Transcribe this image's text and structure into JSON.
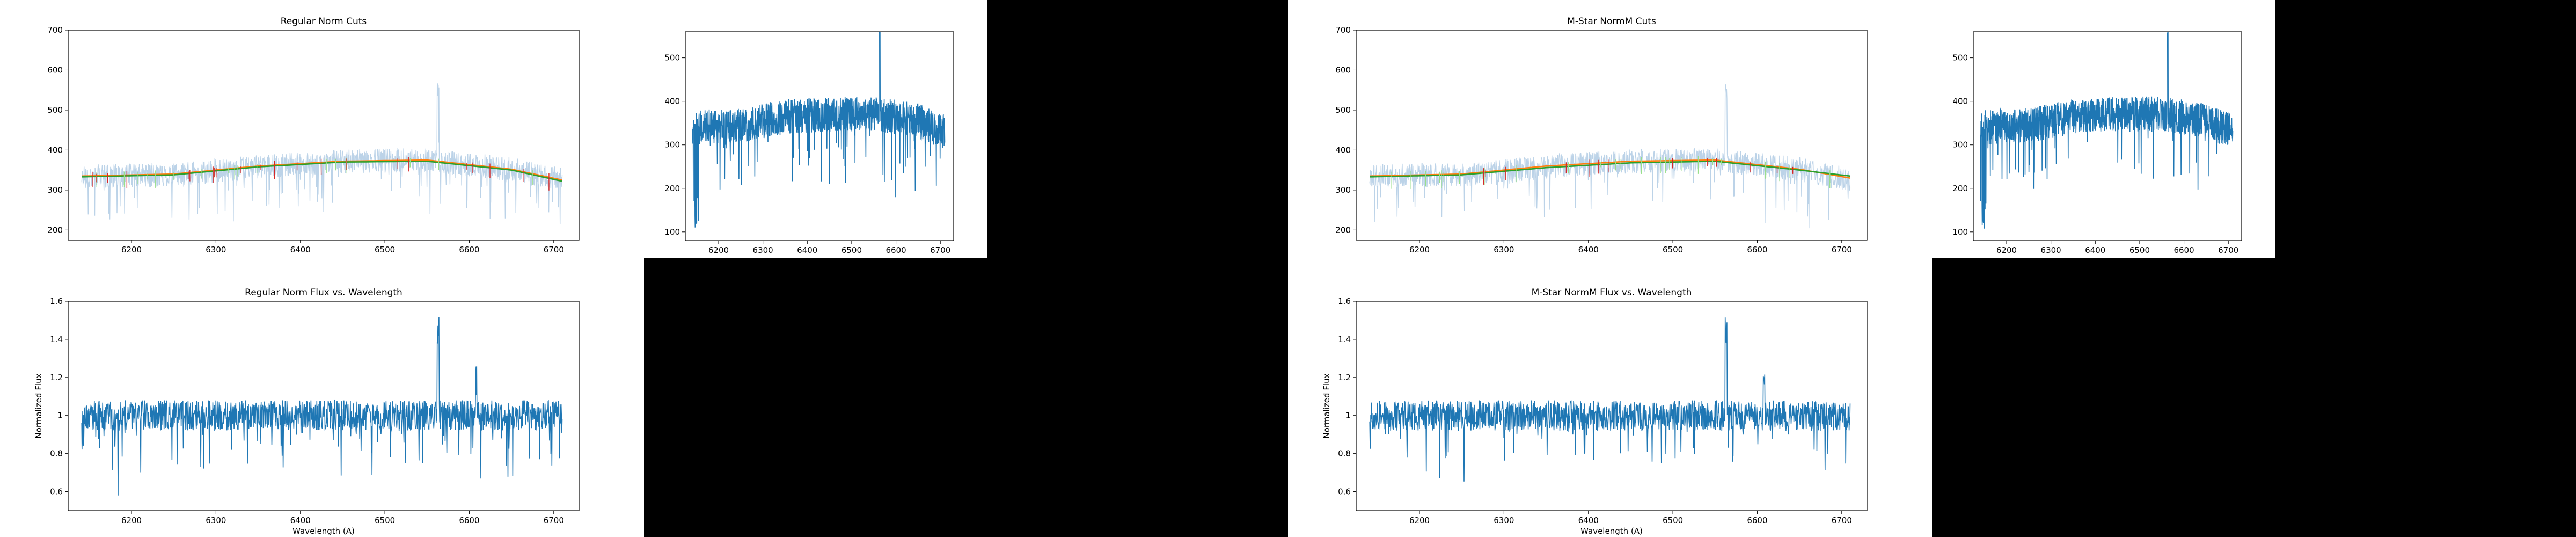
{
  "colors": {
    "flux": "#1f77b4",
    "flux_faint": "#bcd3e8",
    "fit_orange": "#ff7f0e",
    "fit_green": "#2ca02c",
    "cut_red": "#d62728",
    "cut_green": "#98df8a",
    "axis": "#000000",
    "figure_bg": "#ffffff",
    "empty_bg": "#000000"
  },
  "panels": [
    {
      "id": "regular",
      "layout": "left"
    },
    {
      "id": "mstar",
      "layout": "right"
    }
  ],
  "chart_data": [
    {
      "type": "line",
      "title": "Regular Norm Cuts",
      "xlabel": "",
      "ylabel": "",
      "xlim": [
        6125,
        6730
      ],
      "ylim": [
        175,
        700
      ],
      "xticks": [
        6200,
        6300,
        6400,
        6500,
        6600,
        6700
      ],
      "yticks": [
        200,
        300,
        400,
        500,
        600,
        700
      ],
      "series": [
        {
          "role": "raw flux",
          "style": "faint",
          "x_range": [
            6141,
            6710
          ]
        },
        {
          "role": "fit",
          "style": "orange",
          "x": [
            6141,
            6250,
            6350,
            6450,
            6550,
            6650,
            6710
          ],
          "y": [
            335,
            340,
            360,
            372,
            375,
            352,
            325
          ]
        },
        {
          "role": "fit",
          "style": "green",
          "x": [
            6141,
            6250,
            6350,
            6450,
            6550,
            6650,
            6710
          ],
          "y": [
            333,
            338,
            358,
            370,
            372,
            350,
            322
          ]
        }
      ]
    },
    {
      "type": "line",
      "title": "",
      "xlabel": "",
      "ylabel": "",
      "xlim": [
        6125,
        6730
      ],
      "ylim": [
        80,
        560
      ],
      "xticks": [
        6200,
        6300,
        6400,
        6500,
        6600,
        6700
      ],
      "yticks": [
        100,
        200,
        300,
        400,
        500
      ],
      "series": [
        {
          "role": "flux",
          "style": "solid",
          "x_range": [
            6141,
            6710
          ]
        }
      ]
    },
    {
      "type": "line",
      "title": "Regular Norm Flux vs. Wavelength",
      "xlabel": "Wavelength (A)",
      "ylabel": "Normalized Flux",
      "xlim": [
        6125,
        6730
      ],
      "ylim": [
        0.5,
        1.6
      ],
      "xticks": [
        6200,
        6300,
        6400,
        6500,
        6600,
        6700
      ],
      "yticks": [
        0.6,
        0.8,
        1.0,
        1.2,
        1.4,
        1.6
      ],
      "series": [
        {
          "role": "normalized flux",
          "style": "solid",
          "x_range": [
            6141,
            6710
          ]
        }
      ]
    },
    {
      "type": "line",
      "title": "M-Star NormM Cuts",
      "xlabel": "",
      "ylabel": "",
      "xlim": [
        6125,
        6730
      ],
      "ylim": [
        175,
        700
      ],
      "xticks": [
        6200,
        6300,
        6400,
        6500,
        6600,
        6700
      ],
      "yticks": [
        200,
        300,
        400,
        500,
        600,
        700
      ],
      "series": [
        {
          "role": "raw flux",
          "style": "faint",
          "x_range": [
            6141,
            6710
          ]
        },
        {
          "role": "fit",
          "style": "orange",
          "x": [
            6141,
            6250,
            6350,
            6450,
            6550,
            6650,
            6710
          ],
          "y": [
            335,
            340,
            360,
            372,
            375,
            352,
            330
          ]
        },
        {
          "role": "fit",
          "style": "green",
          "x": [
            6141,
            6250,
            6350,
            6450,
            6550,
            6650,
            6710
          ],
          "y": [
            333,
            338,
            356,
            368,
            372,
            350,
            335
          ]
        }
      ]
    },
    {
      "type": "line",
      "title": "",
      "xlabel": "",
      "ylabel": "",
      "xlim": [
        6125,
        6730
      ],
      "ylim": [
        80,
        560
      ],
      "xticks": [
        6200,
        6300,
        6400,
        6500,
        6600,
        6700
      ],
      "yticks": [
        100,
        200,
        300,
        400,
        500
      ],
      "series": [
        {
          "role": "flux",
          "style": "solid",
          "x_range": [
            6141,
            6710
          ]
        }
      ]
    },
    {
      "type": "line",
      "title": "M-Star NormM Flux vs. Wavelength",
      "xlabel": "Wavelength (A)",
      "ylabel": "Normalized Flux",
      "xlim": [
        6125,
        6730
      ],
      "ylim": [
        0.5,
        1.6
      ],
      "xticks": [
        6200,
        6300,
        6400,
        6500,
        6600,
        6700
      ],
      "yticks": [
        0.6,
        0.8,
        1.0,
        1.2,
        1.4,
        1.6
      ],
      "series": [
        {
          "role": "normalized flux",
          "style": "solid",
          "x_range": [
            6141,
            6710
          ]
        }
      ]
    }
  ]
}
